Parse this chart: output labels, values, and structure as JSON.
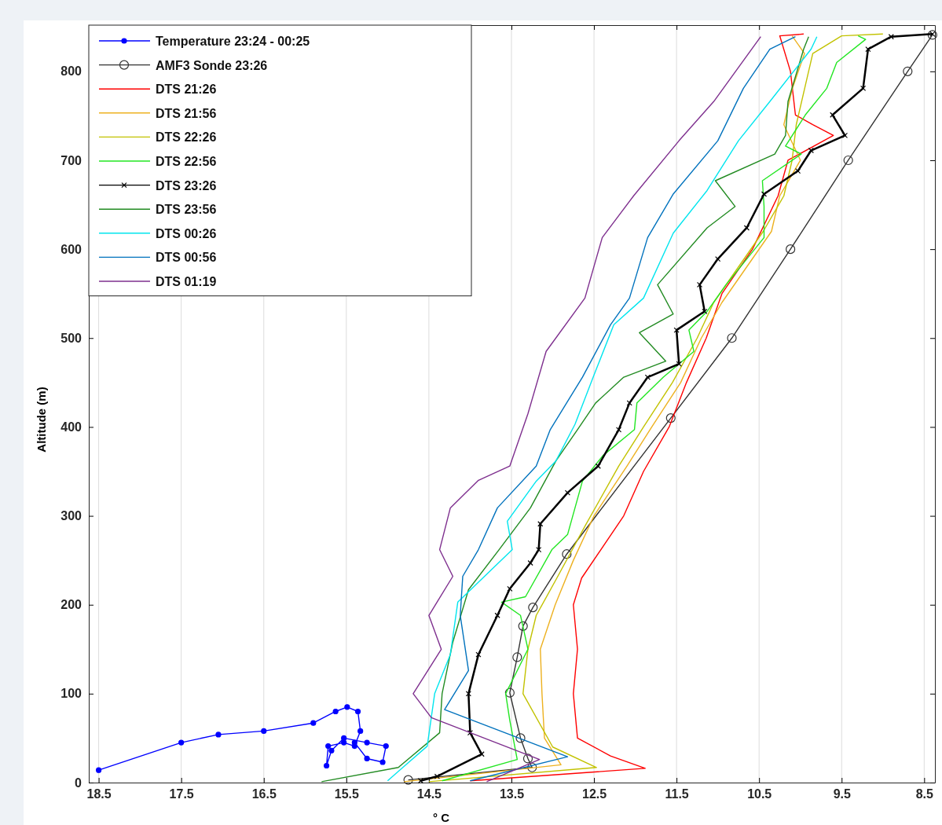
{
  "chart_data": {
    "type": "line",
    "xlabel": "° C",
    "ylabel": "Altitude (m)",
    "xlim": [
      18.62,
      8.37
    ],
    "ylim": [
      0,
      852
    ],
    "xticks": [
      18.5,
      17.5,
      16.5,
      15.5,
      14.5,
      13.5,
      12.5,
      11.5,
      10.5,
      9.5,
      8.5
    ],
    "yticks": [
      0,
      100,
      200,
      300,
      400,
      500,
      600,
      700,
      800
    ],
    "grid": "x",
    "legend": "top left",
    "series": [
      {
        "name": "Temperature 23:24 - 00:25",
        "color": "#0000ff",
        "marker": "circle",
        "x": [
          18.5,
          17.5,
          17.05,
          16.5,
          15.9,
          15.63,
          15.49,
          15.36,
          15.33,
          15.4,
          15.53,
          15.72,
          15.74,
          15.68,
          15.53,
          15.25,
          15.02,
          15.06,
          15.25,
          15.4
        ],
        "values": [
          14,
          45,
          54,
          58,
          67,
          80,
          85,
          80,
          58,
          41,
          45,
          41,
          19,
          36,
          50,
          45,
          41,
          23,
          27,
          45
        ]
      },
      {
        "name": "AMF3 Sonde 23:26",
        "color": "#333333",
        "marker": "circle",
        "x": [
          14.75,
          13.25,
          13.3,
          13.39,
          13.52,
          13.43,
          13.36,
          13.24,
          12.83,
          11.57,
          10.83,
          10.12,
          9.42,
          8.7,
          8.4
        ],
        "values": [
          3,
          17,
          27,
          50,
          101,
          141,
          176,
          197,
          257,
          410,
          500,
          600,
          700,
          800,
          841
        ]
      },
      {
        "name": "DTS 21:26",
        "color": "#ff0000",
        "x": [
          14.0,
          11.88,
          12.3,
          12.7,
          12.75,
          12.7,
          12.75,
          12.65,
          12.14,
          11.9,
          11.59,
          11.38,
          11.14,
          10.95,
          10.58,
          10.27,
          10.15,
          9.6,
          9.85,
          10.06,
          10.12,
          10.25,
          9.96
        ],
        "values": [
          2,
          16,
          30,
          50,
          100,
          150,
          200,
          230,
          300,
          350,
          400,
          450,
          500,
          550,
          600,
          660,
          700,
          728,
          740,
          751,
          800,
          840,
          842
        ]
      },
      {
        "name": "DTS 21:56",
        "color": "#edb120",
        "x": [
          14.8,
          12.9,
          13.1,
          13.13,
          13.15,
          12.97,
          12.75,
          12.5,
          12.1,
          11.8,
          11.45,
          11.2,
          10.95,
          10.65,
          10.35,
          10.25,
          10.0,
          10.2,
          10.1,
          9.95,
          10.1
        ],
        "values": [
          1,
          20,
          50,
          100,
          150,
          200,
          250,
          300,
          356,
          400,
          450,
          500,
          540,
          580,
          620,
          660,
          700,
          740,
          780,
          820,
          840
        ]
      },
      {
        "name": "DTS 22:26",
        "color": "#c2c200",
        "x": [
          14.5,
          12.47,
          13.0,
          13.36,
          13.3,
          13.2,
          12.95,
          12.6,
          12.2,
          11.9,
          11.55,
          11.25,
          11.05,
          10.75,
          10.45,
          10.2,
          10.1,
          10.05,
          9.95,
          9.85,
          9.5,
          9.0
        ],
        "values": [
          1,
          17,
          40,
          100,
          150,
          188,
          230,
          290,
          356,
          400,
          450,
          500,
          540,
          580,
          620,
          660,
          700,
          740,
          780,
          820,
          840,
          842
        ]
      },
      {
        "name": "DTS 22:56",
        "color": "#22e622",
        "x": [
          14.34,
          13.43,
          13.52,
          13.57,
          13.3,
          13.39,
          13.62,
          13.33,
          13.01,
          12.82,
          12.64,
          12.39,
          12.01,
          11.98,
          11.66,
          11.29,
          11.35,
          11.13,
          10.9,
          10.44,
          10.44,
          10.46,
          9.99,
          10.18,
          9.94,
          9.68,
          9.56,
          9.21,
          9.3
        ],
        "values": [
          2,
          26,
          70,
          100,
          150,
          188,
          203,
          209,
          262,
          279,
          339,
          368,
          397,
          427,
          456,
          485,
          509,
          530,
          560,
          613,
          648,
          677,
          707,
          716,
          751,
          781,
          810,
          836,
          840
        ]
      },
      {
        "name": "DTS 23:26",
        "color": "#000000",
        "marker": "cross",
        "x": [
          14.6,
          14.4,
          13.86,
          14.0,
          14.02,
          13.9,
          13.67,
          13.52,
          13.27,
          13.17,
          13.15,
          12.82,
          12.45,
          12.2,
          12.07,
          11.85,
          11.47,
          11.5,
          11.16,
          11.22,
          11.0,
          10.65,
          10.44,
          10.03,
          9.87,
          9.46,
          9.61,
          9.24,
          9.18,
          8.9,
          8.4
        ],
        "values": [
          2,
          7,
          32,
          56,
          100,
          144,
          188,
          218,
          247,
          262,
          291,
          326,
          356,
          397,
          427,
          456,
          471,
          509,
          530,
          560,
          589,
          624,
          662,
          688,
          711,
          728,
          751,
          781,
          825,
          839,
          842
        ]
      },
      {
        "name": "DTS 23:56",
        "color": "#228b22",
        "x": [
          15.8,
          14.87,
          14.37,
          14.34,
          14.21,
          14.02,
          13.65,
          13.27,
          12.96,
          12.7,
          12.48,
          12.14,
          11.63,
          11.95,
          11.54,
          11.73,
          11.13,
          10.79,
          11.03,
          10.31,
          10.18,
          10.15,
          9.96,
          9.9
        ],
        "values": [
          1,
          17,
          56,
          100,
          158,
          217,
          262,
          309,
          362,
          397,
          427,
          456,
          474,
          506,
          527,
          560,
          624,
          648,
          677,
          707,
          728,
          766,
          825,
          839
        ]
      },
      {
        "name": "DTS 00:26",
        "color": "#00e5ee",
        "x": [
          15.0,
          14.52,
          14.43,
          14.24,
          14.15,
          13.49,
          13.55,
          13.2,
          12.96,
          12.73,
          12.51,
          12.26,
          11.9,
          11.54,
          11.13,
          10.75,
          10.37,
          9.87,
          9.8
        ],
        "values": [
          2,
          41,
          100,
          144,
          203,
          262,
          294,
          339,
          362,
          403,
          456,
          515,
          545,
          618,
          666,
          722,
          766,
          825,
          839
        ]
      },
      {
        "name": "DTS 00:56",
        "color": "#0072bd",
        "x": [
          14.0,
          12.82,
          14.31,
          14.02,
          14.12,
          14.09,
          13.9,
          13.67,
          13.2,
          13.03,
          12.64,
          12.3,
          12.07,
          11.85,
          11.54,
          11.0,
          10.69,
          10.37,
          10.06
        ],
        "values": [
          2,
          29,
          82,
          126,
          188,
          232,
          262,
          309,
          356,
          397,
          456,
          515,
          545,
          613,
          662,
          722,
          781,
          825,
          839
        ]
      },
      {
        "name": "DTS 01:19",
        "color": "#7e2f8e",
        "x": [
          13.8,
          13.16,
          14.47,
          14.69,
          14.35,
          14.5,
          14.21,
          14.37,
          14.24,
          13.9,
          13.52,
          13.3,
          13.08,
          12.61,
          12.4,
          12.02,
          11.47,
          11.05,
          10.48
        ],
        "values": [
          1,
          26,
          73,
          100,
          150,
          188,
          232,
          262,
          309,
          340,
          356,
          415,
          485,
          545,
          613,
          660,
          722,
          766,
          839
        ]
      }
    ]
  }
}
